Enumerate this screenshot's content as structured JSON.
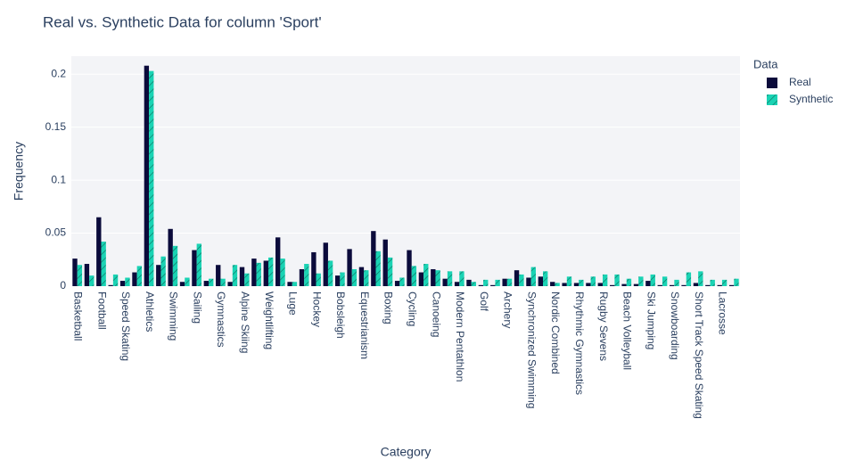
{
  "chart_data": {
    "type": "bar",
    "title": "Real vs. Synthetic Data for column 'Sport'",
    "x_label": "Category",
    "y_label": "Frequency",
    "legend_title": "Data",
    "categories": [
      "Basketball",
      null,
      "Football",
      null,
      "Speed Skating",
      null,
      "Athletics",
      null,
      "Swimming",
      null,
      "Sailing",
      null,
      "Gymnastics",
      null,
      "Alpine Skiing",
      null,
      "Weightlifting",
      null,
      "Luge",
      null,
      "Hockey",
      null,
      "Bobsleigh",
      null,
      "Equestrianism",
      null,
      "Boxing",
      null,
      "Cycling",
      null,
      "Canoeing",
      null,
      "Modern Pentathlon",
      null,
      "Golf",
      null,
      "Archery",
      null,
      "Synchronized Swimming",
      null,
      "Nordic Combined",
      null,
      "Rhythmic Gymnastics",
      null,
      "Rugby Sevens",
      null,
      "Beach Volleyball",
      null,
      "Ski Jumping",
      null,
      "Snowboarding",
      null,
      "Short Track Speed Skating",
      null,
      "Lacrosse",
      null
    ],
    "series": [
      {
        "name": "Real",
        "color": "#0b0b3b",
        "pattern": false,
        "values": [
          0.026,
          0.021,
          0.065,
          0.001,
          0.005,
          0.013,
          0.208,
          0.02,
          0.054,
          0.004,
          0.034,
          0.005,
          0.02,
          0.004,
          0.018,
          0.026,
          0.024,
          0.046,
          0.004,
          0.016,
          0.032,
          0.041,
          0.01,
          0.035,
          0.018,
          0.052,
          0.044,
          0.005,
          0.034,
          0.013,
          0.016,
          0.007,
          0.004,
          0.006,
          0.001,
          0.001,
          0.007,
          0.015,
          0.008,
          0.009,
          0.004,
          0.003,
          0.003,
          0.003,
          0.003,
          0.001,
          0.002,
          0.002,
          0.005,
          0.001,
          0.001,
          0.001,
          0.003,
          0.001,
          0.001,
          0.001
        ]
      },
      {
        "name": "Synthetic",
        "color": "#1ad3b4",
        "pattern": true,
        "values": [
          0.02,
          0.01,
          0.042,
          0.011,
          0.008,
          0.019,
          0.203,
          0.028,
          0.038,
          0.008,
          0.04,
          0.007,
          0.007,
          0.02,
          0.012,
          0.022,
          0.027,
          0.026,
          0.004,
          0.021,
          0.012,
          0.024,
          0.013,
          0.016,
          0.015,
          0.033,
          0.027,
          0.008,
          0.019,
          0.021,
          0.015,
          0.014,
          0.014,
          0.004,
          0.006,
          0.006,
          0.007,
          0.011,
          0.018,
          0.014,
          0.003,
          0.009,
          0.006,
          0.009,
          0.011,
          0.011,
          0.007,
          0.009,
          0.011,
          0.009,
          0.006,
          0.013,
          0.014,
          0.006,
          0.006,
          0.007
        ]
      }
    ],
    "ylim": [
      0,
      0.217
    ],
    "yticks": [
      0,
      0.05,
      0.1,
      0.15,
      0.2
    ],
    "grid": true,
    "legend": "right"
  }
}
